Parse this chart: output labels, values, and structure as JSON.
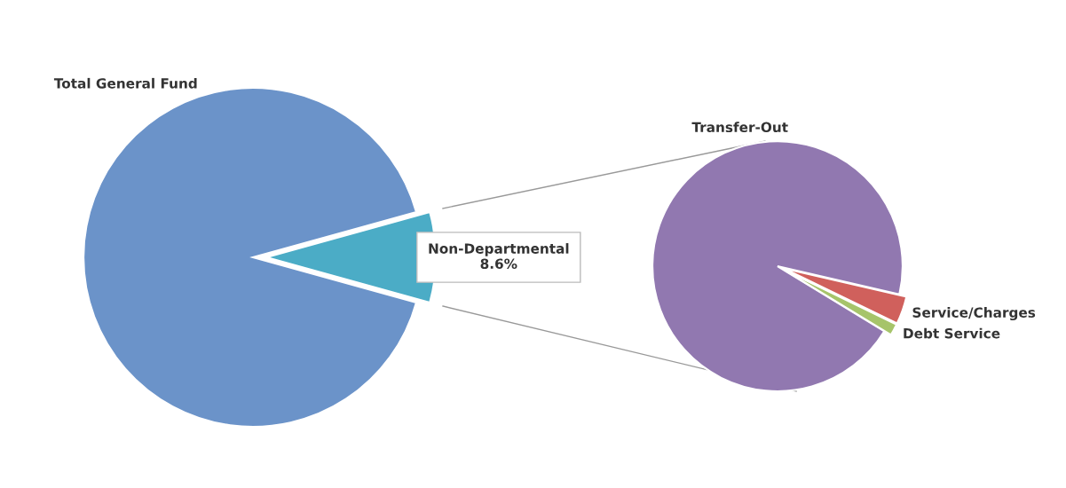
{
  "chart_data": [
    {
      "type": "pie",
      "categories": [
        "Total General Fund",
        "Non-Departmental"
      ],
      "values": [
        91.4,
        8.6
      ],
      "colors": [
        "#6b93c9",
        "#4bacc6"
      ],
      "value_labels": [
        null,
        "8.6%"
      ]
    },
    {
      "type": "pie",
      "categories": [
        "Transfer-Out",
        "Service/Charges",
        "Debt Service"
      ],
      "values": [
        94.9,
        3.6,
        1.5
      ],
      "colors": [
        "#9178b0",
        "#d0605c",
        "#a6c46a"
      ]
    }
  ]
}
